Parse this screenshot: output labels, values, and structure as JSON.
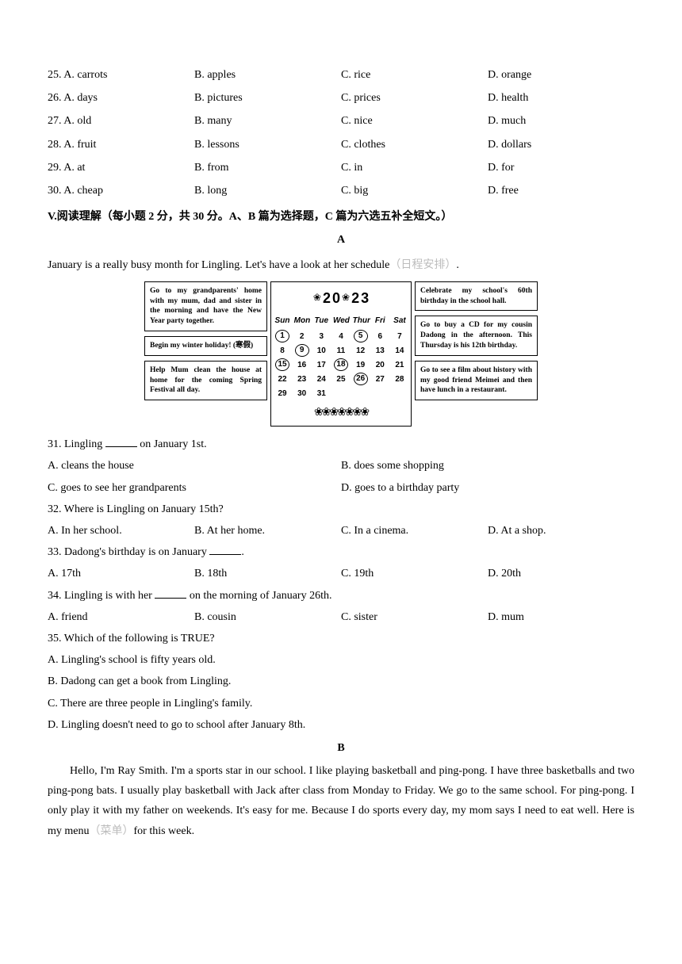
{
  "mcq": [
    {
      "n": "25",
      "a": "A. carrots",
      "b": "B. apples",
      "c": "C. rice",
      "d": "D. orange"
    },
    {
      "n": "26",
      "a": "A. days",
      "b": "B. pictures",
      "c": "C. prices",
      "d": "D. health"
    },
    {
      "n": "27",
      "a": "A. old",
      "b": "B. many",
      "c": "C. nice",
      "d": "D. much"
    },
    {
      "n": "28",
      "a": "A. fruit",
      "b": "B. lessons",
      "c": "C. clothes",
      "d": "D. dollars"
    },
    {
      "n": "29",
      "a": "A. at",
      "b": "B. from",
      "c": "C. in",
      "d": "D. for"
    },
    {
      "n": "30",
      "a": "A. cheap",
      "b": "B. long",
      "c": "C. big",
      "d": "D. free"
    }
  ],
  "sectionTitle": "V.阅读理解（每小题 2 分，共 30 分。A、B 篇为选择题，C 篇为六选五补全短文。）",
  "labelA": "A",
  "introA_pre": "January is a really busy month for Lingling. Let's have a look at her schedule",
  "introA_gray": "（日程安排）",
  "introA_post": ".",
  "notesLeft": [
    "Go to my grandparents' home with my mum, dad and sister in the morning and have the New Year party together.",
    "Begin my winter holiday! (寒假)",
    "Help Mum clean the house at home for the coming Spring Festival all day."
  ],
  "notesRight": [
    "Celebrate my school's 60th birthday in the school hall.",
    "Go to buy a CD for my cousin Dadong in the afternoon. This Thursday is his 12th birthday.",
    "Go to see a film about history with my good friend Meimei and then have lunch in a restaurant."
  ],
  "calendar": {
    "year": [
      "2",
      "0",
      "2",
      "3"
    ],
    "dow": [
      "Sun",
      "Mon",
      "Tue",
      "Wed",
      "Thur",
      "Fri",
      "Sat"
    ],
    "rows": [
      [
        {
          "v": "1",
          "c": true
        },
        {
          "v": "2"
        },
        {
          "v": "3"
        },
        {
          "v": "4"
        },
        {
          "v": "5",
          "c": true
        },
        {
          "v": "6"
        },
        {
          "v": "7"
        }
      ],
      [
        {
          "v": "8"
        },
        {
          "v": "9",
          "c": true
        },
        {
          "v": "10"
        },
        {
          "v": "11"
        },
        {
          "v": "12"
        },
        {
          "v": "13"
        },
        {
          "v": "14"
        }
      ],
      [
        {
          "v": "15",
          "c": true
        },
        {
          "v": "16"
        },
        {
          "v": "17"
        },
        {
          "v": "18",
          "c": true
        },
        {
          "v": "19"
        },
        {
          "v": "20"
        },
        {
          "v": "21"
        }
      ],
      [
        {
          "v": "22"
        },
        {
          "v": "23"
        },
        {
          "v": "24"
        },
        {
          "v": "25"
        },
        {
          "v": "26",
          "c": true
        },
        {
          "v": "27"
        },
        {
          "v": "28"
        }
      ],
      [
        {
          "v": "29"
        },
        {
          "v": "30"
        },
        {
          "v": "31"
        },
        {
          "v": ""
        },
        {
          "v": ""
        },
        {
          "v": ""
        },
        {
          "v": ""
        }
      ]
    ]
  },
  "q31": {
    "stem_pre": "31. Lingling ",
    "stem_post": " on January 1st.",
    "a": "A. cleans the house",
    "b": "B. does some shopping",
    "c": "C. goes to see her grandparents",
    "d": "D. goes to a birthday party"
  },
  "q32": {
    "stem": "32. Where is Lingling on January 15th?",
    "a": "A. In her school.",
    "b": "B. At her home.",
    "c": "C. In a cinema.",
    "d": "D. At a shop."
  },
  "q33": {
    "stem_pre": "33. Dadong's birthday is on January ",
    "stem_post": ".",
    "a": "A. 17th",
    "b": "B. 18th",
    "c": "C. 19th",
    "d": "D. 20th"
  },
  "q34": {
    "stem_pre": "34. Lingling is with her ",
    "stem_post": " on the morning of January 26th.",
    "a": "A. friend",
    "b": "B. cousin",
    "c": "C. sister",
    "d": "D. mum"
  },
  "q35": {
    "stem": "35. Which of the following is TRUE?",
    "a": "A. Lingling's school is fifty years old.",
    "b": "B. Dadong can get a book from Lingling.",
    "c": "C. There are three people in Lingling's family.",
    "d": "D. Lingling doesn't need to go to school after January 8th."
  },
  "labelB": "B",
  "passageB_pre": "Hello, I'm Ray Smith. I'm a sports star in our school. I like playing basketball and ping-pong. I have three basketballs and two ping-pong bats. I usually play basketball with Jack after class from Monday to Friday. We go to the same school. For ping-pong. I only play it with my father on weekends. It's easy for me. Because I do sports every day, my mom says I need to eat well. Here is my menu",
  "passageB_gray": "（菜单）",
  "passageB_post": "for this week."
}
